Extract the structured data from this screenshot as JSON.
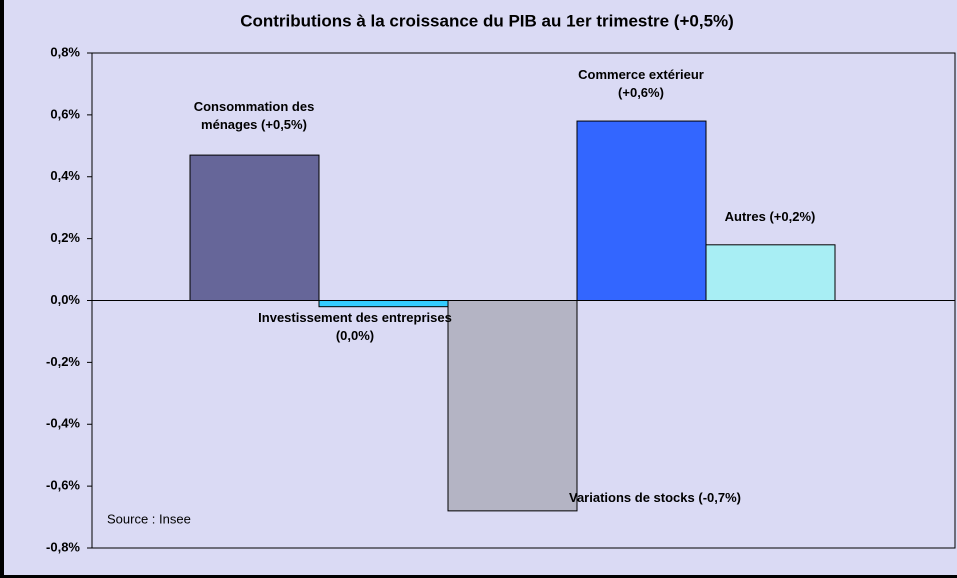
{
  "chart_data": {
    "type": "bar",
    "title": "Contributions à la croissance du PIB au 1er trimestre (+0,5%)",
    "categories": [
      "Consommation des ménages",
      "Investissement des entreprises",
      "Variations de stocks",
      "Commerce extérieur",
      "Autres"
    ],
    "values": [
      0.47,
      -0.02,
      -0.68,
      0.58,
      0.18
    ],
    "value_labels": [
      "(+0,5%)",
      "(0,0%)",
      "(-0,7%)",
      "(+0,6%)",
      "(+0,2%)"
    ],
    "colors": [
      "#666699",
      "#33ccff",
      "#b4b4c4",
      "#3366ff",
      "#a8eef4"
    ],
    "ylim": [
      -0.8,
      0.8
    ],
    "yticks": [
      {
        "value": -0.8,
        "label": "-0,8%"
      },
      {
        "value": -0.6,
        "label": "-0,6%"
      },
      {
        "value": -0.4,
        "label": "-0,4%"
      },
      {
        "value": -0.2,
        "label": "-0,2%"
      },
      {
        "value": 0,
        "label": "0,0%"
      },
      {
        "value": 0.2,
        "label": "0,2%"
      },
      {
        "value": 0.4,
        "label": "0,4%"
      },
      {
        "value": 0.6,
        "label": "0,6%"
      },
      {
        "value": 0.8,
        "label": "0,8%"
      }
    ],
    "annotation": "Source : Insee",
    "grid": false
  }
}
